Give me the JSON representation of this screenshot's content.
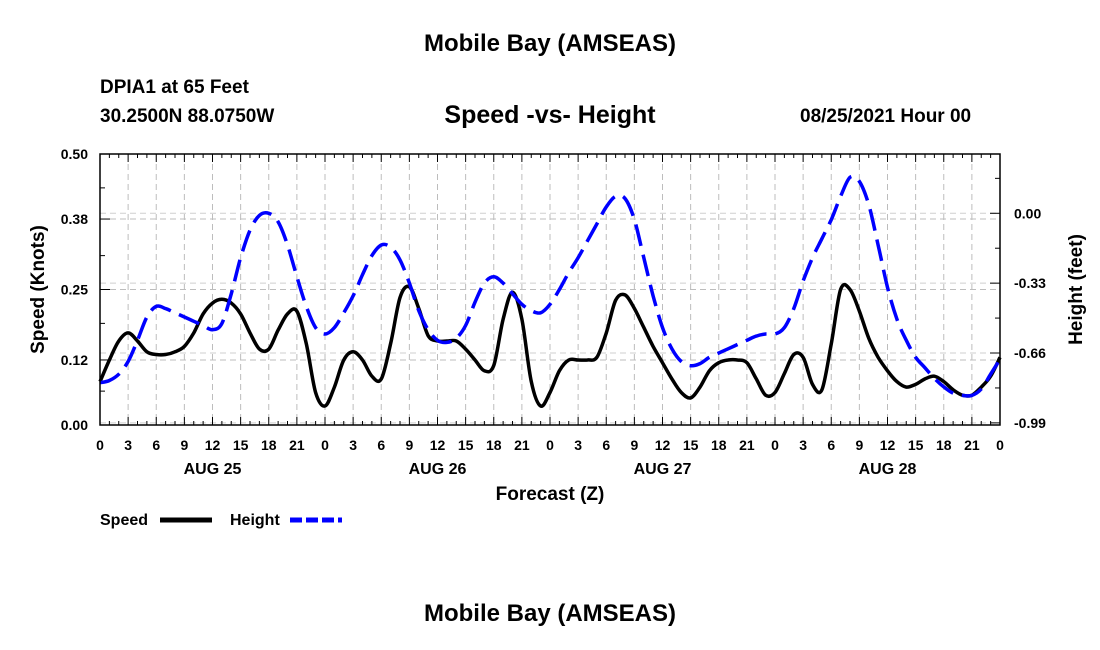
{
  "header": {
    "title": "Mobile Bay (AMSEAS)",
    "station": "DPIA1 at 65 Feet",
    "coords": "30.2500N  88.0750W",
    "subtitle": "Speed -vs- Height",
    "datetime": "08/25/2021 Hour 00",
    "footer_title": "Mobile Bay (AMSEAS)"
  },
  "chart_data": {
    "type": "line",
    "title": "Speed -vs- Height",
    "xlabel": "Forecast (Z)",
    "ylabel_left": "Speed (Knots)",
    "ylabel_right": "Height (feet)",
    "xlim": [
      0,
      96
    ],
    "ylim_left": [
      0,
      0.5
    ],
    "ylim_right": [
      -1.0,
      0.28
    ],
    "left_ticks": [
      "0.00",
      "0.12",
      "0.25",
      "0.38",
      "0.50"
    ],
    "right_ticks": [
      "-0.99",
      "-0.66",
      "-0.33",
      "0.00"
    ],
    "x_tick_labels": [
      "0",
      "3",
      "6",
      "9",
      "12",
      "15",
      "18",
      "21",
      "0",
      "3",
      "6",
      "9",
      "12",
      "15",
      "18",
      "21",
      "0",
      "3",
      "6",
      "9",
      "12",
      "15",
      "18",
      "21",
      "0",
      "3",
      "6",
      "9",
      "12",
      "15",
      "18",
      "21",
      "0"
    ],
    "day_labels": [
      {
        "label": "AUG 25",
        "hour": 12
      },
      {
        "label": "AUG 26",
        "hour": 36
      },
      {
        "label": "AUG 27",
        "hour": 60
      },
      {
        "label": "AUG 28",
        "hour": 84
      }
    ],
    "grid": true,
    "series": [
      {
        "name": "Speed",
        "axis": "left",
        "color": "#000000",
        "style": "solid",
        "points": [
          [
            0,
            0.08
          ],
          [
            1,
            0.12
          ],
          [
            2,
            0.155
          ],
          [
            3,
            0.17
          ],
          [
            4,
            0.155
          ],
          [
            5,
            0.135
          ],
          [
            6,
            0.13
          ],
          [
            7,
            0.13
          ],
          [
            8,
            0.135
          ],
          [
            9,
            0.145
          ],
          [
            10,
            0.17
          ],
          [
            11,
            0.205
          ],
          [
            12,
            0.225
          ],
          [
            13,
            0.232
          ],
          [
            14,
            0.225
          ],
          [
            15,
            0.205
          ],
          [
            16,
            0.17
          ],
          [
            17,
            0.14
          ],
          [
            18,
            0.14
          ],
          [
            19,
            0.175
          ],
          [
            20,
            0.205
          ],
          [
            21,
            0.21
          ],
          [
            22,
            0.15
          ],
          [
            23,
            0.06
          ],
          [
            24,
            0.035
          ],
          [
            25,
            0.07
          ],
          [
            26,
            0.12
          ],
          [
            27,
            0.135
          ],
          [
            28,
            0.12
          ],
          [
            29,
            0.09
          ],
          [
            30,
            0.085
          ],
          [
            31,
            0.15
          ],
          [
            32,
            0.235
          ],
          [
            33,
            0.255
          ],
          [
            34,
            0.215
          ],
          [
            35,
            0.165
          ],
          [
            36,
            0.155
          ],
          [
            37,
            0.155
          ],
          [
            38,
            0.155
          ],
          [
            39,
            0.14
          ],
          [
            40,
            0.12
          ],
          [
            41,
            0.1
          ],
          [
            42,
            0.11
          ],
          [
            43,
            0.195
          ],
          [
            44,
            0.245
          ],
          [
            45,
            0.195
          ],
          [
            46,
            0.08
          ],
          [
            47,
            0.035
          ],
          [
            48,
            0.06
          ],
          [
            49,
            0.1
          ],
          [
            50,
            0.12
          ],
          [
            51,
            0.12
          ],
          [
            52,
            0.12
          ],
          [
            53,
            0.125
          ],
          [
            54,
            0.17
          ],
          [
            55,
            0.23
          ],
          [
            56,
            0.24
          ],
          [
            57,
            0.215
          ],
          [
            58,
            0.18
          ],
          [
            59,
            0.145
          ],
          [
            60,
            0.115
          ],
          [
            61,
            0.085
          ],
          [
            62,
            0.06
          ],
          [
            63,
            0.05
          ],
          [
            64,
            0.07
          ],
          [
            65,
            0.1
          ],
          [
            66,
            0.115
          ],
          [
            67,
            0.12
          ],
          [
            68,
            0.12
          ],
          [
            69,
            0.115
          ],
          [
            70,
            0.085
          ],
          [
            71,
            0.055
          ],
          [
            72,
            0.06
          ],
          [
            73,
            0.095
          ],
          [
            74,
            0.13
          ],
          [
            75,
            0.125
          ],
          [
            76,
            0.075
          ],
          [
            77,
            0.065
          ],
          [
            78,
            0.15
          ],
          [
            79,
            0.25
          ],
          [
            80,
            0.25
          ],
          [
            81,
            0.21
          ],
          [
            82,
            0.16
          ],
          [
            83,
            0.125
          ],
          [
            84,
            0.1
          ],
          [
            85,
            0.08
          ],
          [
            86,
            0.07
          ],
          [
            87,
            0.075
          ],
          [
            88,
            0.085
          ],
          [
            89,
            0.09
          ],
          [
            90,
            0.08
          ],
          [
            91,
            0.065
          ],
          [
            92,
            0.055
          ],
          [
            93,
            0.055
          ],
          [
            94,
            0.07
          ],
          [
            95,
            0.09
          ],
          [
            96,
            0.125
          ]
        ]
      },
      {
        "name": "Height",
        "axis": "right",
        "color": "#0000ff",
        "style": "dashed",
        "points": [
          [
            0,
            -0.8
          ],
          [
            1,
            -0.79
          ],
          [
            2,
            -0.76
          ],
          [
            3,
            -0.7
          ],
          [
            4,
            -0.6
          ],
          [
            5,
            -0.49
          ],
          [
            6,
            -0.44
          ],
          [
            7,
            -0.45
          ],
          [
            8,
            -0.47
          ],
          [
            9,
            -0.49
          ],
          [
            10,
            -0.51
          ],
          [
            11,
            -0.53
          ],
          [
            12,
            -0.55
          ],
          [
            13,
            -0.52
          ],
          [
            14,
            -0.38
          ],
          [
            15,
            -0.21
          ],
          [
            16,
            -0.08
          ],
          [
            17,
            -0.01
          ],
          [
            18,
            0.0
          ],
          [
            19,
            -0.04
          ],
          [
            20,
            -0.15
          ],
          [
            21,
            -0.3
          ],
          [
            22,
            -0.44
          ],
          [
            23,
            -0.54
          ],
          [
            24,
            -0.57
          ],
          [
            25,
            -0.54
          ],
          [
            26,
            -0.47
          ],
          [
            27,
            -0.39
          ],
          [
            28,
            -0.29
          ],
          [
            29,
            -0.2
          ],
          [
            30,
            -0.15
          ],
          [
            31,
            -0.16
          ],
          [
            32,
            -0.22
          ],
          [
            33,
            -0.33
          ],
          [
            34,
            -0.46
          ],
          [
            35,
            -0.55
          ],
          [
            36,
            -0.6
          ],
          [
            37,
            -0.61
          ],
          [
            38,
            -0.59
          ],
          [
            39,
            -0.53
          ],
          [
            40,
            -0.42
          ],
          [
            41,
            -0.33
          ],
          [
            42,
            -0.3
          ],
          [
            43,
            -0.33
          ],
          [
            44,
            -0.38
          ],
          [
            45,
            -0.43
          ],
          [
            46,
            -0.46
          ],
          [
            47,
            -0.47
          ],
          [
            48,
            -0.43
          ],
          [
            49,
            -0.36
          ],
          [
            50,
            -0.28
          ],
          [
            51,
            -0.21
          ],
          [
            52,
            -0.13
          ],
          [
            53,
            -0.05
          ],
          [
            54,
            0.03
          ],
          [
            55,
            0.08
          ],
          [
            56,
            0.07
          ],
          [
            57,
            -0.03
          ],
          [
            58,
            -0.21
          ],
          [
            59,
            -0.39
          ],
          [
            60,
            -0.54
          ],
          [
            61,
            -0.64
          ],
          [
            62,
            -0.7
          ],
          [
            63,
            -0.72
          ],
          [
            64,
            -0.71
          ],
          [
            65,
            -0.68
          ],
          [
            66,
            -0.66
          ],
          [
            67,
            -0.64
          ],
          [
            68,
            -0.62
          ],
          [
            69,
            -0.6
          ],
          [
            70,
            -0.58
          ],
          [
            71,
            -0.57
          ],
          [
            72,
            -0.57
          ],
          [
            73,
            -0.54
          ],
          [
            74,
            -0.45
          ],
          [
            75,
            -0.32
          ],
          [
            76,
            -0.21
          ],
          [
            77,
            -0.12
          ],
          [
            78,
            -0.03
          ],
          [
            79,
            0.08
          ],
          [
            80,
            0.17
          ],
          [
            81,
            0.15
          ],
          [
            82,
            0.04
          ],
          [
            83,
            -0.15
          ],
          [
            84,
            -0.35
          ],
          [
            85,
            -0.5
          ],
          [
            86,
            -0.6
          ],
          [
            87,
            -0.68
          ],
          [
            88,
            -0.73
          ],
          [
            89,
            -0.78
          ],
          [
            90,
            -0.82
          ],
          [
            91,
            -0.85
          ],
          [
            92,
            -0.86
          ],
          [
            93,
            -0.86
          ],
          [
            94,
            -0.83
          ],
          [
            95,
            -0.76
          ],
          [
            96,
            -0.69
          ]
        ]
      }
    ],
    "legend": [
      {
        "label": "Speed",
        "color": "#000000",
        "style": "solid"
      },
      {
        "label": "Height",
        "color": "#0000ff",
        "style": "dashed"
      }
    ]
  }
}
